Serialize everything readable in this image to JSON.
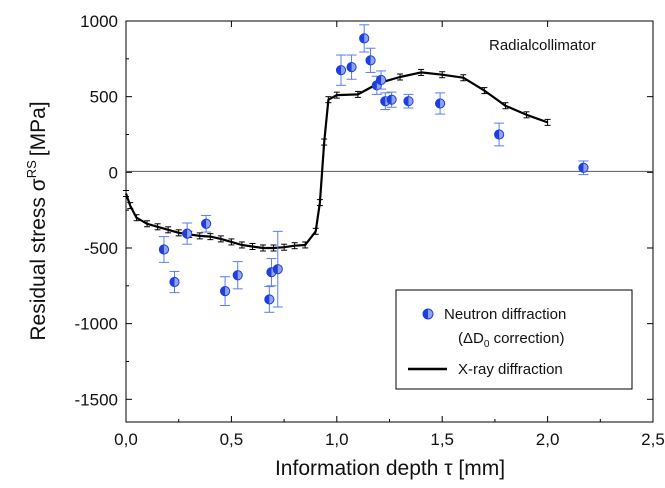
{
  "chart_data": {
    "type": "scatter",
    "annotation": "Radialcollimator",
    "ylabel_main": "Residual stress σ",
    "ylabel_sup": "RS",
    "ylabel_unit": "[MPa]",
    "xlabel": "Information depth τ [mm]",
    "xlim": [
      0,
      2.5
    ],
    "ylim": [
      -1650,
      1000
    ],
    "xticks": [
      0,
      0.5,
      1.0,
      1.5,
      2.0,
      2.5
    ],
    "xtick_labels": [
      "0,0",
      "0,5",
      "1,0",
      "1,5",
      "2,0",
      "2,5"
    ],
    "yticks": [
      -1500,
      -1000,
      -500,
      0,
      500,
      1000
    ],
    "ytick_labels": [
      "-1500",
      "-1000",
      "-500",
      "0",
      "500",
      "1000"
    ],
    "zero_line": true,
    "grid": false,
    "legend_position": "bottom-right",
    "legend": {
      "neutron_line1": "Neutron diffraction",
      "neutron_line2_pre": "(ΔD",
      "neutron_line2_sub": "0",
      "neutron_line2_post": " correction)",
      "xray": "X-ray diffraction"
    },
    "colors": {
      "neutron": "#1f3fdc",
      "neutron_light": "#8fa3f0",
      "xray": "#000000",
      "errorbar": "#5a7df0"
    },
    "series": [
      {
        "name": "Neutron diffraction",
        "kind": "points",
        "points": [
          {
            "x": 0.18,
            "y": -510,
            "err": 85
          },
          {
            "x": 0.23,
            "y": -725,
            "err": 70
          },
          {
            "x": 0.29,
            "y": -405,
            "err": 70
          },
          {
            "x": 0.38,
            "y": -340,
            "err": 55
          },
          {
            "x": 0.47,
            "y": -785,
            "err": 95
          },
          {
            "x": 0.53,
            "y": -680,
            "err": 90
          },
          {
            "x": 0.68,
            "y": -840,
            "err": 85
          },
          {
            "x": 0.69,
            "y": -660,
            "err": 90
          },
          {
            "x": 0.72,
            "y": -640,
            "err": 250
          },
          {
            "x": 1.02,
            "y": 675,
            "err": 100
          },
          {
            "x": 1.07,
            "y": 695,
            "err": 80
          },
          {
            "x": 1.13,
            "y": 885,
            "err": 90
          },
          {
            "x": 1.16,
            "y": 740,
            "err": 80
          },
          {
            "x": 1.19,
            "y": 575,
            "err": 60
          },
          {
            "x": 1.21,
            "y": 610,
            "err": 60
          },
          {
            "x": 1.23,
            "y": 470,
            "err": 55
          },
          {
            "x": 1.26,
            "y": 480,
            "err": 50
          },
          {
            "x": 1.34,
            "y": 470,
            "err": 45
          },
          {
            "x": 1.49,
            "y": 455,
            "err": 70
          },
          {
            "x": 1.77,
            "y": 250,
            "err": 75
          },
          {
            "x": 2.17,
            "y": 30,
            "err": 45
          }
        ]
      },
      {
        "name": "X-ray diffraction",
        "kind": "line",
        "points": [
          {
            "x": 0.0,
            "y": -140
          },
          {
            "x": 0.02,
            "y": -220
          },
          {
            "x": 0.05,
            "y": -300
          },
          {
            "x": 0.1,
            "y": -340
          },
          {
            "x": 0.15,
            "y": -360
          },
          {
            "x": 0.2,
            "y": -380
          },
          {
            "x": 0.25,
            "y": -400
          },
          {
            "x": 0.3,
            "y": -410
          },
          {
            "x": 0.35,
            "y": -420
          },
          {
            "x": 0.4,
            "y": -425
          },
          {
            "x": 0.45,
            "y": -440
          },
          {
            "x": 0.5,
            "y": -460
          },
          {
            "x": 0.55,
            "y": -480
          },
          {
            "x": 0.6,
            "y": -490
          },
          {
            "x": 0.65,
            "y": -500
          },
          {
            "x": 0.7,
            "y": -500
          },
          {
            "x": 0.75,
            "y": -495
          },
          {
            "x": 0.8,
            "y": -485
          },
          {
            "x": 0.85,
            "y": -480
          },
          {
            "x": 0.9,
            "y": -390
          },
          {
            "x": 0.92,
            "y": -200
          },
          {
            "x": 0.94,
            "y": 200
          },
          {
            "x": 0.96,
            "y": 480
          },
          {
            "x": 1.0,
            "y": 510
          },
          {
            "x": 1.1,
            "y": 515
          },
          {
            "x": 1.2,
            "y": 590
          },
          {
            "x": 1.3,
            "y": 630
          },
          {
            "x": 1.4,
            "y": 660
          },
          {
            "x": 1.5,
            "y": 645
          },
          {
            "x": 1.6,
            "y": 625
          },
          {
            "x": 1.7,
            "y": 540
          },
          {
            "x": 1.8,
            "y": 440
          },
          {
            "x": 1.9,
            "y": 380
          },
          {
            "x": 2.0,
            "y": 330
          }
        ]
      }
    ]
  }
}
